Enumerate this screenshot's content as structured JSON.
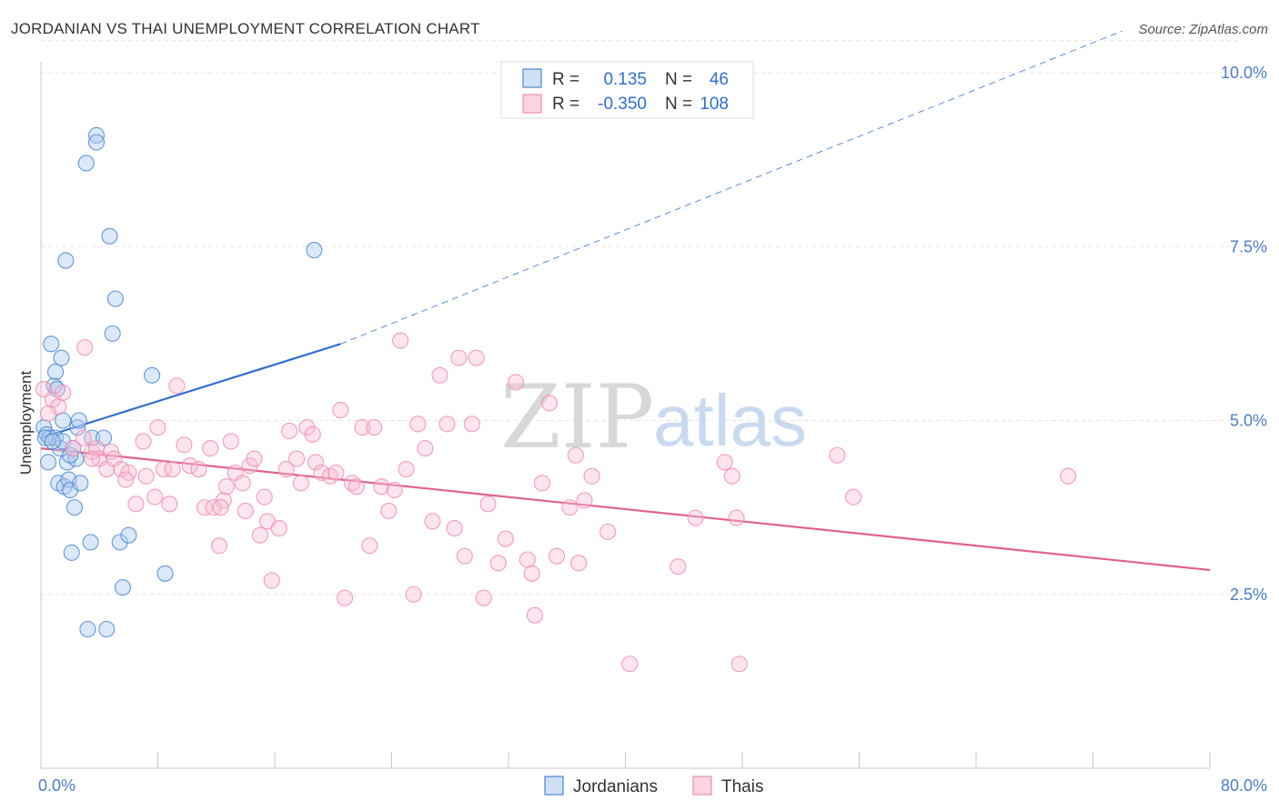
{
  "title": "JORDANIAN VS THAI UNEMPLOYMENT CORRELATION CHART",
  "source": "Source: ZipAtlas.com",
  "watermark": {
    "zip": "ZIP",
    "atlas": "atlas"
  },
  "colors": {
    "jordanians": "#4a86d4",
    "thais": "#f08db0",
    "jordanians_line": "#2f6fcf",
    "thais_line": "#e0628f",
    "tick": "#4a7cc9"
  },
  "chart_data": {
    "type": "scatter",
    "title": "JORDANIAN VS THAI UNEMPLOYMENT CORRELATION CHART",
    "xlabel": "",
    "ylabel": "Unemployment",
    "xlim": [
      0,
      80
    ],
    "ylim": [
      0,
      10.5
    ],
    "x_ticks_labeled": [
      "0.0%",
      "80.0%"
    ],
    "y_ticks": [
      {
        "v": 2.5,
        "label": "2.5%"
      },
      {
        "v": 5.0,
        "label": "5.0%"
      },
      {
        "v": 7.5,
        "label": "7.5%"
      },
      {
        "v": 10.0,
        "label": "10.0%"
      }
    ],
    "grid": true,
    "legend_top": [
      {
        "series": "Jordanians",
        "r_label": "R =",
        "r": "0.135",
        "n_label": "N =",
        "n": "46"
      },
      {
        "series": "Thais",
        "r_label": "R =",
        "r": "-0.350",
        "n_label": "N =",
        "n": "108"
      }
    ],
    "legend_bottom": [
      "Jordanians",
      "Thais"
    ],
    "trend": {
      "jordanians": {
        "x0": 0,
        "y0": 4.75,
        "x1": 20.5,
        "y1": 6.1,
        "dash_to_x": 74,
        "dash_to_y": 10.6
      },
      "thais": {
        "x0": 0,
        "y0": 4.6,
        "x1": 80,
        "y1": 2.85
      }
    },
    "series": [
      {
        "name": "Jordanians",
        "points": [
          [
            0.2,
            4.9
          ],
          [
            0.4,
            4.8
          ],
          [
            0.5,
            4.4
          ],
          [
            0.6,
            4.75
          ],
          [
            0.7,
            6.1
          ],
          [
            0.9,
            5.5
          ],
          [
            1.0,
            4.75
          ],
          [
            1.0,
            5.7
          ],
          [
            1.2,
            4.1
          ],
          [
            1.3,
            4.6
          ],
          [
            1.4,
            5.9
          ],
          [
            1.5,
            4.7
          ],
          [
            1.5,
            5.0
          ],
          [
            1.6,
            4.05
          ],
          [
            1.7,
            7.3
          ],
          [
            1.8,
            4.4
          ],
          [
            1.9,
            4.15
          ],
          [
            2.0,
            4.0
          ],
          [
            2.1,
            3.1
          ],
          [
            2.2,
            4.6
          ],
          [
            2.3,
            3.75
          ],
          [
            2.4,
            4.45
          ],
          [
            2.5,
            4.9
          ],
          [
            2.6,
            5.0
          ],
          [
            2.7,
            4.1
          ],
          [
            3.1,
            8.7
          ],
          [
            3.2,
            2.0
          ],
          [
            3.4,
            3.25
          ],
          [
            3.5,
            4.75
          ],
          [
            3.8,
            9.1
          ],
          [
            3.8,
            9.0
          ],
          [
            4.3,
            4.75
          ],
          [
            4.5,
            2.0
          ],
          [
            4.7,
            7.65
          ],
          [
            4.9,
            6.25
          ],
          [
            5.1,
            6.75
          ],
          [
            5.4,
            3.25
          ],
          [
            5.6,
            2.6
          ],
          [
            6.0,
            3.35
          ],
          [
            7.6,
            5.65
          ],
          [
            8.5,
            2.8
          ],
          [
            18.7,
            7.45
          ],
          [
            0.3,
            4.75
          ],
          [
            0.8,
            4.7
          ],
          [
            1.1,
            5.45
          ],
          [
            2.0,
            4.5
          ]
        ]
      },
      {
        "name": "Thais",
        "points": [
          [
            0.2,
            5.45
          ],
          [
            0.8,
            5.3
          ],
          [
            1.2,
            5.2
          ],
          [
            2.2,
            4.6
          ],
          [
            2.9,
            4.75
          ],
          [
            3.0,
            6.05
          ],
          [
            3.5,
            4.55
          ],
          [
            3.8,
            4.6
          ],
          [
            4.0,
            4.45
          ],
          [
            4.5,
            4.3
          ],
          [
            4.8,
            4.55
          ],
          [
            5.0,
            4.45
          ],
          [
            5.5,
            4.3
          ],
          [
            6.0,
            4.25
          ],
          [
            6.5,
            3.8
          ],
          [
            7.0,
            4.7
          ],
          [
            7.2,
            4.2
          ],
          [
            7.8,
            3.9
          ],
          [
            8.0,
            4.9
          ],
          [
            8.4,
            4.3
          ],
          [
            8.8,
            3.8
          ],
          [
            9.0,
            4.3
          ],
          [
            9.3,
            5.5
          ],
          [
            9.8,
            4.65
          ],
          [
            10.2,
            4.35
          ],
          [
            10.8,
            4.3
          ],
          [
            11.2,
            3.75
          ],
          [
            11.6,
            4.6
          ],
          [
            11.8,
            3.75
          ],
          [
            12.2,
            3.2
          ],
          [
            12.5,
            3.85
          ],
          [
            12.7,
            4.05
          ],
          [
            13.0,
            4.7
          ],
          [
            13.3,
            4.25
          ],
          [
            13.8,
            4.1
          ],
          [
            14.0,
            3.7
          ],
          [
            14.3,
            4.35
          ],
          [
            14.6,
            4.45
          ],
          [
            15.0,
            3.35
          ],
          [
            15.3,
            3.9
          ],
          [
            15.5,
            3.55
          ],
          [
            15.8,
            2.7
          ],
          [
            16.3,
            3.45
          ],
          [
            16.8,
            4.3
          ],
          [
            17.0,
            4.85
          ],
          [
            17.5,
            4.45
          ],
          [
            17.8,
            4.1
          ],
          [
            18.2,
            4.9
          ],
          [
            18.6,
            4.8
          ],
          [
            18.8,
            4.4
          ],
          [
            19.2,
            4.25
          ],
          [
            19.8,
            4.2
          ],
          [
            20.2,
            4.25
          ],
          [
            20.5,
            5.15
          ],
          [
            20.8,
            2.45
          ],
          [
            21.3,
            4.1
          ],
          [
            21.6,
            4.05
          ],
          [
            22.0,
            4.9
          ],
          [
            22.5,
            3.2
          ],
          [
            22.8,
            4.9
          ],
          [
            23.3,
            4.05
          ],
          [
            23.8,
            3.7
          ],
          [
            24.2,
            4.0
          ],
          [
            24.6,
            6.15
          ],
          [
            25.0,
            4.3
          ],
          [
            25.5,
            2.5
          ],
          [
            25.8,
            4.95
          ],
          [
            26.3,
            4.6
          ],
          [
            26.8,
            3.55
          ],
          [
            27.3,
            5.65
          ],
          [
            27.8,
            4.95
          ],
          [
            28.3,
            3.45
          ],
          [
            28.6,
            5.9
          ],
          [
            29.0,
            3.05
          ],
          [
            29.5,
            4.95
          ],
          [
            29.8,
            5.9
          ],
          [
            30.3,
            2.45
          ],
          [
            30.6,
            3.8
          ],
          [
            31.3,
            2.95
          ],
          [
            31.8,
            3.3
          ],
          [
            32.5,
            5.55
          ],
          [
            33.3,
            3.0
          ],
          [
            33.6,
            2.8
          ],
          [
            33.8,
            2.2
          ],
          [
            34.3,
            4.1
          ],
          [
            34.8,
            5.25
          ],
          [
            35.3,
            3.05
          ],
          [
            36.2,
            3.75
          ],
          [
            36.6,
            4.5
          ],
          [
            36.8,
            2.95
          ],
          [
            37.2,
            3.85
          ],
          [
            37.7,
            4.2
          ],
          [
            38.8,
            3.4
          ],
          [
            40.3,
            1.5
          ],
          [
            43.6,
            2.9
          ],
          [
            44.8,
            3.6
          ],
          [
            46.8,
            4.4
          ],
          [
            47.3,
            4.2
          ],
          [
            47.6,
            3.6
          ],
          [
            47.8,
            1.5
          ],
          [
            54.5,
            4.5
          ],
          [
            55.6,
            3.9
          ],
          [
            70.3,
            4.2
          ],
          [
            0.5,
            5.1
          ],
          [
            1.5,
            5.4
          ],
          [
            3.5,
            4.45
          ],
          [
            5.8,
            4.15
          ],
          [
            12.3,
            3.75
          ]
        ]
      }
    ]
  }
}
